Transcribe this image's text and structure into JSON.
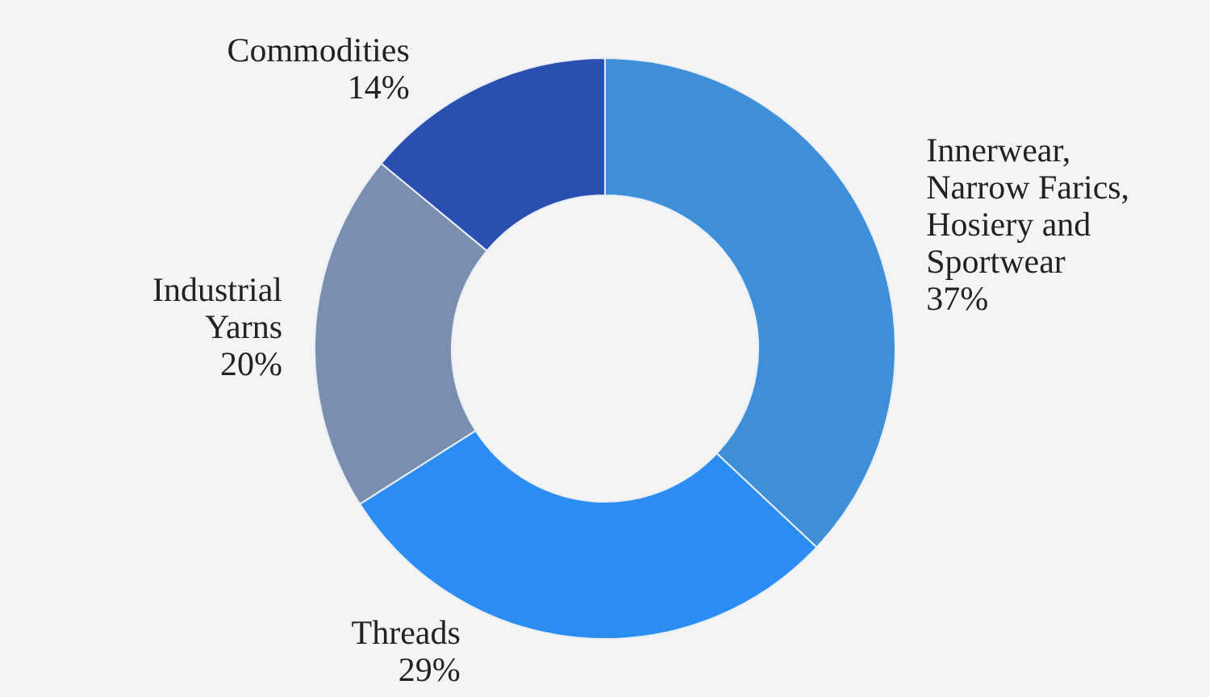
{
  "chart_data": {
    "type": "donut",
    "categories": [
      "Innerwear, Narrow Farics, Hosiery and Sportwear",
      "Threads",
      "Industrial Yarns",
      "Commodities"
    ],
    "values": [
      37,
      29,
      20,
      14
    ],
    "colors": [
      "#3f8fd8",
      "#2b8df2",
      "#7a8fb0",
      "#2a4fb0"
    ],
    "value_labels": [
      "37%",
      "29%",
      "20%",
      "14%"
    ]
  }
}
